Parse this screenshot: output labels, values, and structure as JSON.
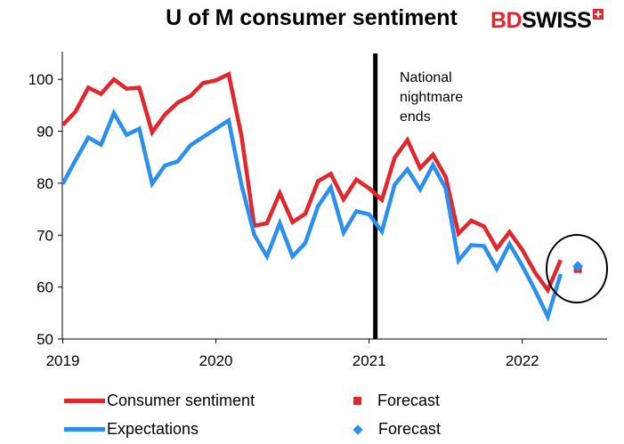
{
  "logo": {
    "part1": "BD",
    "part2": "SWISS"
  },
  "chart_data": {
    "type": "line",
    "title": "U of M consumer sentiment",
    "xlabel": "",
    "ylabel": "",
    "ylim": [
      50,
      105
    ],
    "y_ticks": [
      50,
      60,
      70,
      80,
      90,
      100
    ],
    "x_ticks": [
      "2019",
      "2020",
      "2021",
      "2022"
    ],
    "x_range": [
      "2019-01",
      "2022-05"
    ],
    "grid": false,
    "colors": {
      "consumer": "#e3262c",
      "expectations": "#2b8ff0",
      "marker": "#000000"
    },
    "annotation": {
      "at": "2021-01",
      "lines": [
        "National",
        "nightmare",
        "ends"
      ]
    },
    "series": [
      {
        "name": "Consumer sentiment",
        "x": [
          "2019-01",
          "2019-02",
          "2019-03",
          "2019-04",
          "2019-05",
          "2019-06",
          "2019-07",
          "2019-08",
          "2019-09",
          "2019-10",
          "2019-11",
          "2019-12",
          "2020-01",
          "2020-02",
          "2020-03",
          "2020-04",
          "2020-05",
          "2020-06",
          "2020-07",
          "2020-08",
          "2020-09",
          "2020-10",
          "2020-11",
          "2020-12",
          "2021-01",
          "2021-02",
          "2021-03",
          "2021-04",
          "2021-05",
          "2021-06",
          "2021-07",
          "2021-08",
          "2021-09",
          "2021-10",
          "2021-11",
          "2021-12",
          "2022-01",
          "2022-02",
          "2022-03",
          "2022-04"
        ],
        "values": [
          91.2,
          93.8,
          98.4,
          97.2,
          100.0,
          98.2,
          98.4,
          89.8,
          93.2,
          95.5,
          96.8,
          99.3,
          99.8,
          101.0,
          89.1,
          71.8,
          72.3,
          78.1,
          72.5,
          74.1,
          80.4,
          81.8,
          76.9,
          80.7,
          79.0,
          76.8,
          84.9,
          88.3,
          82.9,
          85.5,
          81.2,
          70.3,
          72.8,
          71.7,
          67.4,
          70.6,
          67.2,
          62.8,
          59.4,
          65.2
        ]
      },
      {
        "name": "Expectations",
        "x": [
          "2019-01",
          "2019-02",
          "2019-03",
          "2019-04",
          "2019-05",
          "2019-06",
          "2019-07",
          "2019-08",
          "2019-09",
          "2019-10",
          "2019-11",
          "2019-12",
          "2020-01",
          "2020-02",
          "2020-03",
          "2020-04",
          "2020-05",
          "2020-06",
          "2020-07",
          "2020-08",
          "2020-09",
          "2020-10",
          "2020-11",
          "2020-12",
          "2021-01",
          "2021-02",
          "2021-03",
          "2021-04",
          "2021-05",
          "2021-06",
          "2021-07",
          "2021-08",
          "2021-09",
          "2021-10",
          "2021-11",
          "2021-12",
          "2022-01",
          "2022-02",
          "2022-03",
          "2022-04"
        ],
        "values": [
          79.9,
          84.4,
          88.8,
          87.4,
          93.5,
          89.3,
          90.5,
          79.9,
          83.4,
          84.2,
          87.3,
          88.9,
          90.5,
          92.1,
          79.7,
          70.1,
          65.9,
          72.3,
          65.9,
          68.5,
          75.6,
          79.2,
          70.5,
          74.6,
          74.0,
          70.7,
          79.7,
          82.7,
          78.8,
          83.5,
          79.0,
          65.1,
          68.1,
          67.9,
          63.5,
          68.3,
          64.1,
          59.4,
          54.3,
          62.5
        ]
      },
      {
        "name": "Forecast",
        "of": "Consumer sentiment",
        "marker": "square",
        "x": [
          "2022-05"
        ],
        "values": [
          63.5
        ]
      },
      {
        "name": "Forecast",
        "of": "Expectations",
        "marker": "diamond",
        "x": [
          "2022-05"
        ],
        "values": [
          64.0
        ]
      }
    ]
  }
}
